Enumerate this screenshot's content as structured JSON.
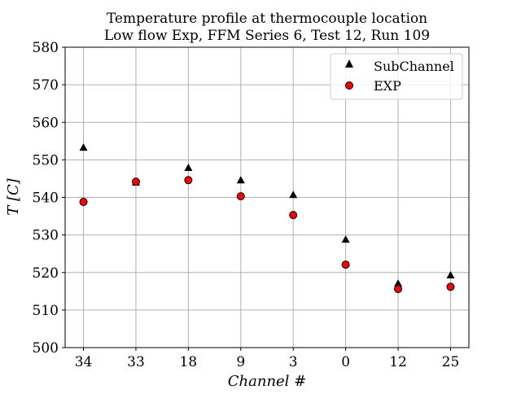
{
  "chart_data": {
    "type": "scatter",
    "title": [
      "Temperature profile at thermocouple location",
      "Low flow Exp, FFM Series 6, Test 12, Run 109"
    ],
    "xlabel": "Channel #",
    "ylabel": "T [C]",
    "categories": [
      "34",
      "33",
      "18",
      "9",
      "3",
      "0",
      "12",
      "25"
    ],
    "ylim": [
      500,
      580
    ],
    "yticks": [
      500,
      510,
      520,
      530,
      540,
      550,
      560,
      570,
      580
    ],
    "grid": true,
    "legend_position": "top-right",
    "series": [
      {
        "name": "SubChannel",
        "marker": "triangle",
        "color": "#000000",
        "values": [
          553.3,
          544.0,
          547.9,
          544.6,
          540.7,
          528.8,
          517.1,
          519.3
        ]
      },
      {
        "name": "EXP",
        "marker": "circle",
        "color": "#ff0000",
        "values": [
          538.8,
          544.2,
          544.6,
          540.3,
          535.3,
          522.1,
          515.6,
          516.2
        ]
      }
    ]
  }
}
